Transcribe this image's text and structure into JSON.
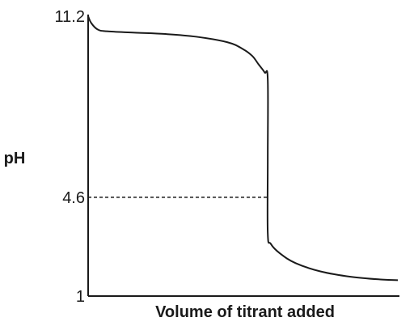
{
  "chart_data": {
    "type": "line",
    "title": "",
    "xlabel": "Volume of titrant added",
    "ylabel": "pH",
    "ylim": [
      1,
      11.2
    ],
    "y_ticks": [
      {
        "value": 11.2,
        "label": "11.2"
      },
      {
        "value": 4.6,
        "label": "4.6"
      },
      {
        "value": 1,
        "label": "1"
      }
    ],
    "x_ticks": [],
    "grid": false,
    "reference_lines": [
      {
        "orientation": "horizontal",
        "y": 4.6,
        "x_end": 0.58,
        "style": "dashed"
      }
    ],
    "series": [
      {
        "x": [
          0,
          0.01,
          0.03,
          0.06,
          0.15,
          0.25,
          0.35,
          0.45,
          0.5,
          0.53,
          0.55,
          0.57,
          0.58,
          0.58,
          0.58,
          0.59,
          0.62,
          0.67,
          0.75,
          0.85,
          0.95,
          1.0
        ],
        "y": [
          11.2,
          10.95,
          10.72,
          10.65,
          10.6,
          10.55,
          10.45,
          10.25,
          10.0,
          9.75,
          9.45,
          9.15,
          8.9,
          6.0,
          3.3,
          2.9,
          2.55,
          2.2,
          1.9,
          1.7,
          1.6,
          1.58
        ]
      }
    ]
  }
}
